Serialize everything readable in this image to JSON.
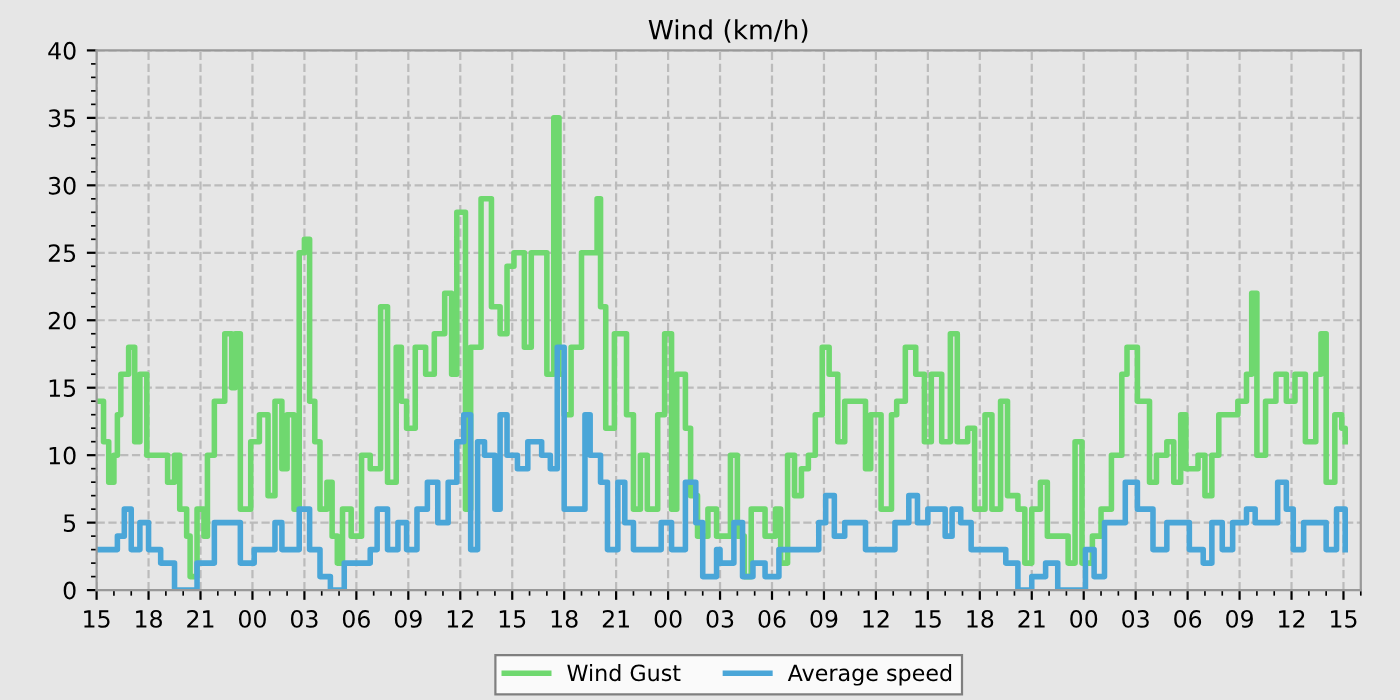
{
  "chart_data": {
    "type": "step",
    "title": "Wind (km/h)",
    "xlim": [
      15,
      88
    ],
    "ylim": [
      0,
      40
    ],
    "yticks": [
      0,
      5,
      10,
      15,
      20,
      25,
      30,
      35,
      40
    ],
    "xticks": [
      15,
      18,
      21,
      {
        "value": 24,
        "label": "00"
      },
      {
        "value": 27,
        "label": "03"
      },
      {
        "value": 30,
        "label": "06"
      },
      {
        "value": 33,
        "label": "09"
      },
      {
        "value": 36,
        "label": "12"
      },
      {
        "value": 39,
        "label": "15"
      },
      {
        "value": 42,
        "label": "18"
      },
      {
        "value": 45,
        "label": "21"
      },
      {
        "value": 48,
        "label": "00"
      },
      {
        "value": 51,
        "label": "03"
      },
      {
        "value": 54,
        "label": "06"
      },
      {
        "value": 57,
        "label": "09"
      },
      {
        "value": 60,
        "label": "12"
      },
      {
        "value": 63,
        "label": "15"
      },
      {
        "value": 66,
        "label": "18"
      },
      {
        "value": 69,
        "label": "21"
      },
      {
        "value": 72,
        "label": "00"
      },
      {
        "value": 75,
        "label": "03"
      },
      {
        "value": 78,
        "label": "06"
      },
      {
        "value": 81,
        "label": "09"
      },
      {
        "value": 84,
        "label": "12"
      },
      {
        "value": 87,
        "label": "15"
      }
    ],
    "grid": true,
    "legend": "bottom",
    "series": [
      {
        "name": "Wind Gust",
        "color": "#6fd86f",
        "x": [
          15,
          15.4,
          15.7,
          16.0,
          16.2,
          16.4,
          16.85,
          17.2,
          17.5,
          17.9,
          18.7,
          19.1,
          19.5,
          19.8,
          20.2,
          20.4,
          20.8,
          21.2,
          21.4,
          21.8,
          22.4,
          22.8,
          23.0,
          23.3,
          23.9,
          24.4,
          24.9,
          25.3,
          25.7,
          26.0,
          26.4,
          26.7,
          27.0,
          27.3,
          27.6,
          27.9,
          28.3,
          28.6,
          28.9,
          29.2,
          29.7,
          30.3,
          30.8,
          31.4,
          31.8,
          32.3,
          32.6,
          32.9,
          33.4,
          34.0,
          34.5,
          35.1,
          35.5,
          35.8,
          36.3,
          36.6,
          37.2,
          37.8,
          38.3,
          38.7,
          39.1,
          39.7,
          40.1,
          40.7,
          41.0,
          41.4,
          41.7,
          42.0,
          42.4,
          43.0,
          43.5,
          43.9,
          44.1,
          44.4,
          44.9,
          45.6,
          46.0,
          46.4,
          46.8,
          47.4,
          47.8,
          48.2,
          48.5,
          49.0,
          49.3,
          49.7,
          50.3,
          50.8,
          51.6,
          52.0,
          52.4,
          52.8,
          53.6,
          54.2,
          54.5,
          54.9,
          55.3,
          55.7,
          56.1,
          56.5,
          56.9,
          57.3,
          57.8,
          58.2,
          59.4,
          59.7,
          60.3,
          60.9,
          61.2,
          61.7,
          62.3,
          62.8,
          63.2,
          63.8,
          64.3,
          64.7,
          65.3,
          65.7,
          66.3,
          66.7,
          67.2,
          67.6,
          68.2,
          68.6,
          69.0,
          69.5,
          69.9,
          70.5,
          71.1,
          71.5,
          71.9,
          72.5,
          73.0,
          73.6,
          74.2,
          74.5,
          75.1,
          75.6,
          75.8,
          76.2,
          76.8,
          77.2,
          77.6,
          77.9,
          78.6,
          79.0,
          79.4,
          79.8,
          80.9,
          81.4,
          81.7,
          82.0,
          82.5,
          83.1,
          83.7,
          84.2,
          84.8,
          85.4,
          85.7,
          86.0,
          86.5,
          86.9,
          87.1
        ],
        "values": [
          14,
          11,
          8,
          10,
          13,
          16,
          18,
          11,
          16,
          10,
          10,
          8,
          10,
          6,
          4,
          1,
          6,
          4,
          10,
          14,
          19,
          15,
          19,
          6,
          11,
          13,
          7,
          14,
          9,
          13,
          6,
          25,
          26,
          14,
          11,
          6,
          8,
          4,
          2,
          6,
          4,
          10,
          9,
          21,
          8,
          18,
          14,
          12,
          18,
          16,
          19,
          22,
          16,
          28,
          6,
          18,
          29,
          21,
          19,
          24,
          25,
          18,
          25,
          25,
          16,
          35,
          16,
          13,
          18,
          25,
          25,
          29,
          21,
          12,
          19,
          13,
          6,
          10,
          6,
          13,
          19,
          6,
          16,
          12,
          7,
          4,
          6,
          4,
          10,
          4,
          1,
          6,
          4,
          6,
          2,
          10,
          7,
          9,
          10,
          13,
          18,
          16,
          11,
          14,
          9,
          13,
          6,
          13,
          14,
          18,
          16,
          11,
          16,
          11,
          19,
          11,
          12,
          6,
          13,
          6,
          14,
          7,
          6,
          2,
          6,
          8,
          4,
          4,
          2,
          11,
          2,
          4,
          6,
          10,
          16,
          18,
          14,
          14,
          8,
          10,
          11,
          8,
          13,
          9,
          10,
          7,
          10,
          13,
          14,
          16,
          22,
          10,
          14,
          16,
          14,
          16,
          11,
          16,
          19,
          8,
          13,
          12,
          11
        ]
      },
      {
        "name": "Average speed",
        "color": "#4aa6d8",
        "x": [
          15,
          15.4,
          16.2,
          16.6,
          17.0,
          17.5,
          18.0,
          18.7,
          19.5,
          20.8,
          21.8,
          23.3,
          24.1,
          25.3,
          25.7,
          26.7,
          27.0,
          27.3,
          27.9,
          28.5,
          29.3,
          30.8,
          31.2,
          31.8,
          32.4,
          32.9,
          33.5,
          34.1,
          34.7,
          35.3,
          35.8,
          36.2,
          36.6,
          37.0,
          37.4,
          38.0,
          38.3,
          38.7,
          39.3,
          39.9,
          40.7,
          41.2,
          41.6,
          42.0,
          43.2,
          43.5,
          44.1,
          44.5,
          45.1,
          45.5,
          46.0,
          47.6,
          48.2,
          49.0,
          49.6,
          50.0,
          50.8,
          51.0,
          51.8,
          52.3,
          52.9,
          53.6,
          54.4,
          56.7,
          57.1,
          57.6,
          58.2,
          59.4,
          61.1,
          61.9,
          62.4,
          63.0,
          64.0,
          64.4,
          64.9,
          65.5,
          67.5,
          68.2,
          69.0,
          69.8,
          70.5,
          72.1,
          72.6,
          73.2,
          74.4,
          75.1,
          76.0,
          76.8,
          78.1,
          78.9,
          79.4,
          80.0,
          80.6,
          81.4,
          81.9,
          83.2,
          83.7,
          84.1,
          84.7,
          86.0,
          86.6,
          87.1
        ],
        "values": [
          3,
          3,
          4,
          6,
          3,
          5,
          3,
          2,
          0,
          2,
          5,
          2,
          3,
          5,
          3,
          6,
          6,
          3,
          1,
          0,
          2,
          3,
          6,
          3,
          5,
          3,
          6,
          8,
          5,
          8,
          11,
          13,
          3,
          11,
          10,
          6,
          13,
          10,
          9,
          11,
          10,
          9,
          18,
          6,
          13,
          10,
          8,
          3,
          8,
          5,
          3,
          5,
          3,
          8,
          5,
          1,
          3,
          2,
          5,
          1,
          2,
          1,
          3,
          5,
          7,
          4,
          5,
          3,
          5,
          7,
          5,
          6,
          4,
          6,
          5,
          3,
          2,
          0,
          1,
          2,
          0,
          3,
          1,
          5,
          8,
          6,
          3,
          5,
          3,
          2,
          5,
          3,
          5,
          6,
          5,
          8,
          6,
          3,
          5,
          3,
          6,
          3
        ]
      }
    ]
  }
}
